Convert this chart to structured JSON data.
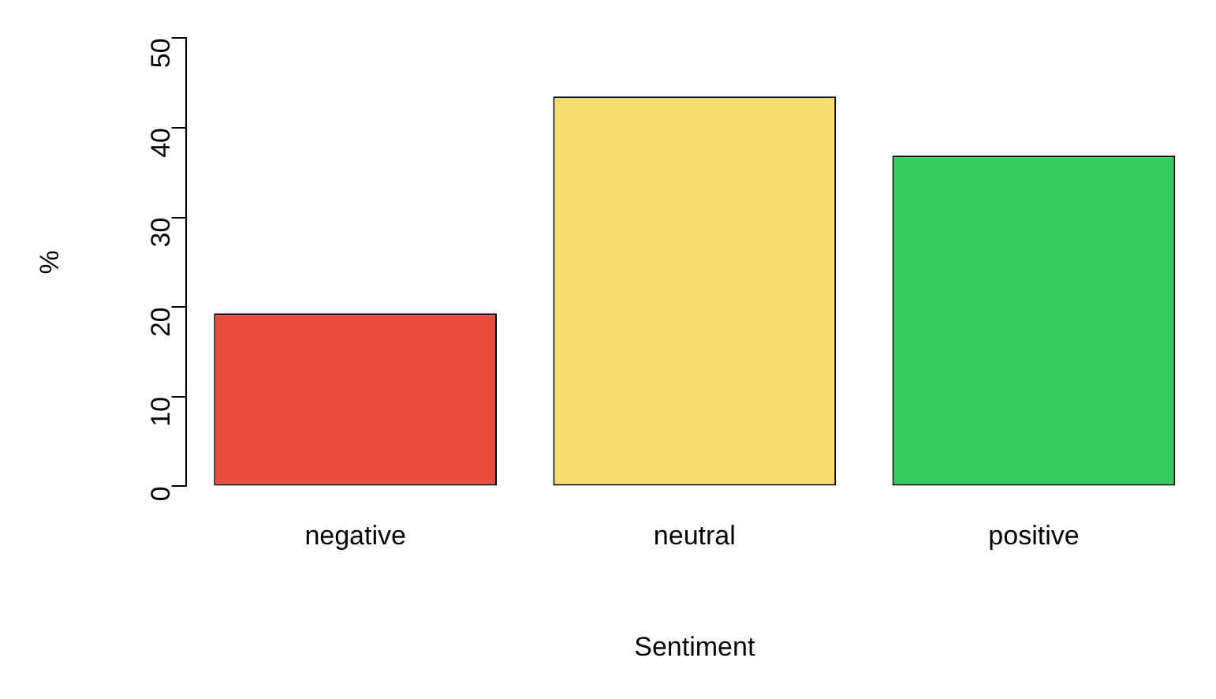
{
  "chart_data": {
    "type": "bar",
    "xlabel": "Sentiment",
    "ylabel": "%",
    "categories": [
      "negative",
      "neutral",
      "positive"
    ],
    "values": [
      19.3,
      43.5,
      36.9
    ],
    "colors": [
      "#e74c3c",
      "#f7dc6f",
      "#36cb5c"
    ],
    "ylim": [
      0,
      50
    ],
    "yticks": [
      0,
      10,
      20,
      30,
      40,
      50
    ],
    "grid": false,
    "legend": false
  }
}
